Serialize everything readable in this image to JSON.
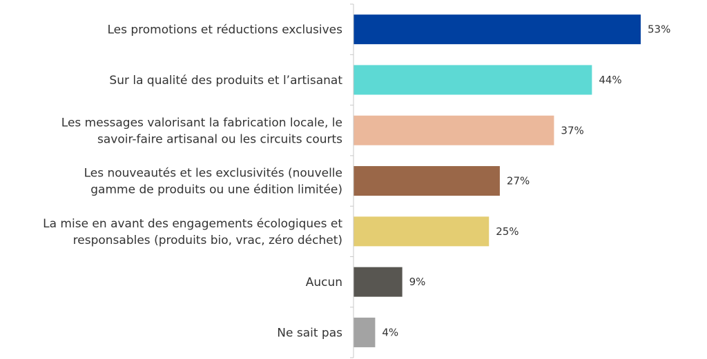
{
  "chart_data": {
    "type": "bar",
    "orientation": "horizontal",
    "title": "",
    "xlabel": "",
    "ylabel": "",
    "xlim": [
      0,
      60
    ],
    "grid": false,
    "legend": "none",
    "categories": [
      [
        "Les promotions et réductions exclusives"
      ],
      [
        "Sur la qualité des produits et l’artisanat"
      ],
      [
        "Les messages valorisant la fabrication locale, le",
        "savoir-faire artisanal ou les circuits courts"
      ],
      [
        "Les nouveautés et les exclusivités (nouvelle",
        "gamme de produits ou une édition limitée)"
      ],
      [
        "La mise en avant des engagements écologiques et",
        "responsables (produits bio, vrac, zéro déchet)"
      ],
      [
        "Aucun"
      ],
      [
        "Ne sait pas"
      ]
    ],
    "values": [
      53,
      44,
      37,
      27,
      25,
      9,
      4
    ],
    "value_labels": [
      "53%",
      "44%",
      "37%",
      "27%",
      "25%",
      "9%",
      "4%"
    ],
    "colors": [
      "#0040a0",
      "#5dd9d4",
      "#ebb89b",
      "#9a6748",
      "#e4cd72",
      "#585651",
      "#a3a3a3"
    ]
  }
}
